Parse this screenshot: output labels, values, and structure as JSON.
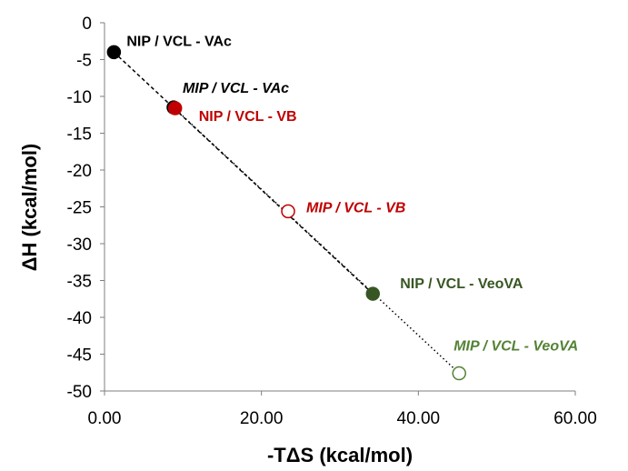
{
  "chart_data": {
    "type": "scatter",
    "xlabel": "-TΔS (kcal/mol)",
    "ylabel": "ΔH (kcal/mol)",
    "xlim": [
      0,
      60
    ],
    "ylim": [
      -50,
      0
    ],
    "x_ticks": [
      "0.00",
      "20.00",
      "40.00",
      "60.00"
    ],
    "y_ticks": [
      "0",
      "-5",
      "-10",
      "-15",
      "-20",
      "-25",
      "-30",
      "-35",
      "-40",
      "-45",
      "-50"
    ],
    "grid": false,
    "legend": "none",
    "points": [
      {
        "label": "NIP / VCL - VAc",
        "x": 1.2,
        "y": -4.0,
        "color": "#000000",
        "filled": true,
        "italic": false
      },
      {
        "label": "MIP / VCL - VAc",
        "x": 8.8,
        "y": -11.5,
        "color": "#000000",
        "filled": true,
        "italic": true
      },
      {
        "label": "NIP / VCL - VB",
        "x": 9.0,
        "y": -11.6,
        "color": "#c00000",
        "filled": true,
        "italic": false
      },
      {
        "label": "MIP / VCL - VB",
        "x": 23.4,
        "y": -25.6,
        "color": "#c00000",
        "filled": false,
        "italic": true
      },
      {
        "label": "NIP / VCL - VeoVA",
        "x": 34.2,
        "y": -36.8,
        "color": "#375623",
        "filled": true,
        "italic": false
      },
      {
        "label": "MIP / VCL - VeoVA",
        "x": 45.2,
        "y": -47.6,
        "color": "#548235",
        "filled": false,
        "italic": true
      }
    ],
    "trendlines": [
      {
        "from": [
          1.2,
          -4.0
        ],
        "to": [
          34.2,
          -36.8
        ],
        "style": "dashed"
      },
      {
        "from": [
          8.8,
          -11.5
        ],
        "to": [
          45.2,
          -47.6
        ],
        "style": "dotted"
      }
    ]
  }
}
